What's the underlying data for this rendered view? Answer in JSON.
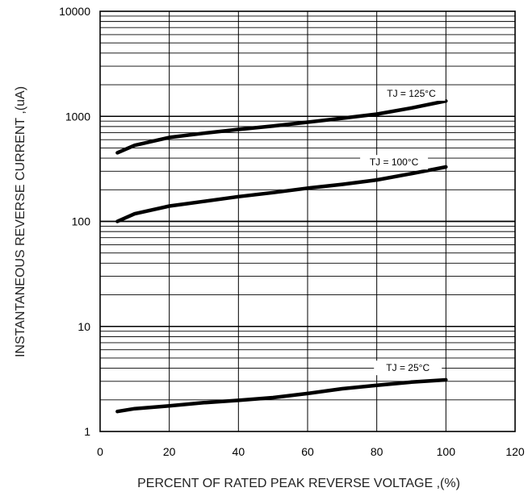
{
  "chart_data": {
    "type": "line",
    "title": "",
    "xlabel": "PERCENT OF RATED PEAK REVERSE VOLTAGE ,(%)",
    "ylabel": "INSTANTANEOUS REVERSE CURRENT ,(uA)",
    "xlim": [
      0,
      120
    ],
    "ylim": [
      1,
      10000
    ],
    "yscale": "log",
    "grid": true,
    "x_ticks": [
      0,
      20,
      40,
      60,
      80,
      100,
      120
    ],
    "x_tick_labels": [
      "0",
      "20",
      "40",
      "60",
      "80",
      "100",
      "120"
    ],
    "y_ticks": [
      1,
      10,
      100,
      1000,
      10000
    ],
    "y_tick_labels": [
      "1",
      "10",
      "100",
      "1000",
      "10000"
    ],
    "series": [
      {
        "name": "TJ = 125°C",
        "x": [
          5,
          10,
          20,
          30,
          40,
          50,
          60,
          70,
          80,
          90,
          100
        ],
        "y": [
          450,
          530,
          630,
          690,
          750,
          810,
          880,
          960,
          1050,
          1200,
          1400
        ]
      },
      {
        "name": "TJ = 100°C",
        "x": [
          5,
          10,
          20,
          30,
          40,
          50,
          60,
          70,
          80,
          90,
          100
        ],
        "y": [
          100,
          118,
          140,
          155,
          172,
          188,
          207,
          225,
          248,
          285,
          330
        ]
      },
      {
        "name": "TJ = 25°C",
        "x": [
          5,
          10,
          20,
          30,
          40,
          50,
          60,
          70,
          80,
          90,
          100
        ],
        "y": [
          1.55,
          1.65,
          1.75,
          1.88,
          1.98,
          2.1,
          2.3,
          2.55,
          2.75,
          2.95,
          3.1
        ]
      }
    ],
    "annotations": [
      {
        "text": "TJ = 125°C",
        "series": 0,
        "x": 90
      },
      {
        "text": "TJ = 100°C",
        "series": 1,
        "x": 85
      },
      {
        "text": "TJ = 25°C",
        "series": 2,
        "x": 89
      }
    ],
    "colors": {
      "line": "#000000",
      "grid": "#000000",
      "background": "#ffffff"
    }
  }
}
